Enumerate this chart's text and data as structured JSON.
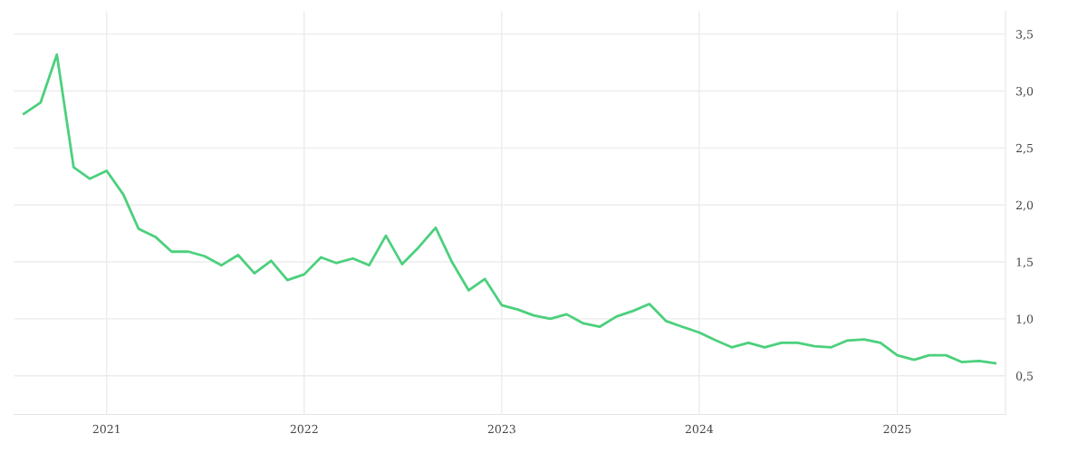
{
  "chart_data": {
    "type": "line",
    "x": [
      "2020-08",
      "2020-09",
      "2020-10",
      "2020-11",
      "2020-12",
      "2021-01",
      "2021-02",
      "2021-03",
      "2021-04",
      "2021-05",
      "2021-06",
      "2021-07",
      "2021-08",
      "2021-09",
      "2021-10",
      "2021-11",
      "2021-12",
      "2022-01",
      "2022-02",
      "2022-03",
      "2022-04",
      "2022-05",
      "2022-06",
      "2022-07",
      "2022-08",
      "2022-09",
      "2022-10",
      "2022-11",
      "2022-12",
      "2023-01",
      "2023-02",
      "2023-03",
      "2023-04",
      "2023-05",
      "2023-06",
      "2023-07",
      "2023-08",
      "2023-09",
      "2023-10",
      "2023-11",
      "2023-12",
      "2024-01",
      "2024-02",
      "2024-03",
      "2024-04",
      "2024-05",
      "2024-06",
      "2024-07",
      "2024-08",
      "2024-09",
      "2024-10",
      "2024-11",
      "2024-12",
      "2025-01",
      "2025-02",
      "2025-03",
      "2025-04",
      "2025-05",
      "2025-06",
      "2025-07"
    ],
    "series": [
      {
        "color": "#4cd07d",
        "values": [
          2.8,
          2.9,
          3.32,
          2.33,
          2.23,
          2.3,
          2.09,
          1.79,
          1.72,
          1.59,
          1.59,
          1.55,
          1.47,
          1.56,
          1.4,
          1.51,
          1.34,
          1.39,
          1.54,
          1.49,
          1.53,
          1.47,
          1.73,
          1.48,
          1.63,
          1.8,
          1.5,
          1.25,
          1.35,
          1.12,
          1.08,
          1.03,
          1.0,
          1.04,
          0.96,
          0.93,
          1.02,
          1.07,
          1.13,
          0.98,
          0.93,
          0.88,
          0.81,
          0.75,
          0.79,
          0.75,
          0.79,
          0.79,
          0.76,
          0.75,
          0.81,
          0.82,
          0.79,
          0.68,
          0.64,
          0.68,
          0.68,
          0.62,
          0.63,
          0.61
        ]
      }
    ],
    "xlim": [
      "2020-07-14",
      "2025-07-20"
    ],
    "xticks": [
      {
        "value": "2021-01-01",
        "label": "2021"
      },
      {
        "value": "2022-01-01",
        "label": "2022"
      },
      {
        "value": "2023-01-01",
        "label": "2023"
      },
      {
        "value": "2024-01-01",
        "label": "2024"
      },
      {
        "value": "2025-01-01",
        "label": "2025"
      }
    ],
    "ylim": [
      0.16,
      3.7
    ],
    "yticks": [
      {
        "value": 0.5,
        "label": "0,5"
      },
      {
        "value": 1.0,
        "label": "1,0"
      },
      {
        "value": 1.5,
        "label": "1,5"
      },
      {
        "value": 2.0,
        "label": "2,0"
      },
      {
        "value": 2.5,
        "label": "2,5"
      },
      {
        "value": 3.0,
        "label": "3,0"
      },
      {
        "value": 3.5,
        "label": "3,5"
      }
    ],
    "grid": true,
    "marker": "none",
    "line_style": "solid"
  }
}
